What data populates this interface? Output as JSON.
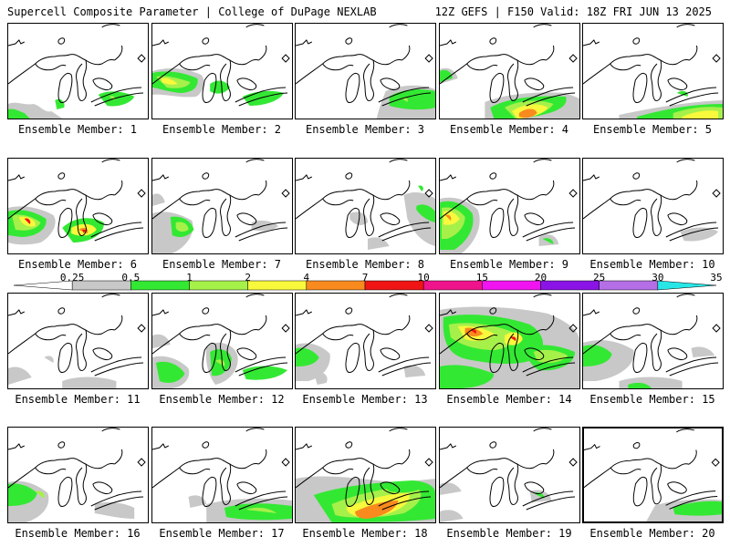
{
  "header": {
    "title": "Supercell Composite Parameter | College of DuPage NEXLAB",
    "run_info": "12Z GEFS | F150 Valid: 18Z FRI JUN 13 2025"
  },
  "colorbar": {
    "thresholds": [
      "0.25",
      "0.5",
      "1",
      "2",
      "4",
      "7",
      "10",
      "15",
      "20",
      "25",
      "30",
      "35"
    ],
    "colors": [
      "#ffffff",
      "#c8c8c8",
      "#33e833",
      "#a6f04a",
      "#f8f83c",
      "#f88a1e",
      "#f01414",
      "#f0148c",
      "#f014f0",
      "#8a14e6",
      "#b46ee6",
      "#28e6e6"
    ]
  },
  "colors": {
    "gray": "#c8c8c8",
    "green": "#33e833",
    "lightgreen": "#a6f04a",
    "yellow": "#f8f83c",
    "orange": "#f88a1e",
    "red": "#f01414"
  },
  "members": [
    {
      "label": "Ensemble Member: 1",
      "selected": false
    },
    {
      "label": "Ensemble Member: 2",
      "selected": false
    },
    {
      "label": "Ensemble Member: 3",
      "selected": false
    },
    {
      "label": "Ensemble Member: 4",
      "selected": false
    },
    {
      "label": "Ensemble Member: 5",
      "selected": false
    },
    {
      "label": "Ensemble Member: 6",
      "selected": false
    },
    {
      "label": "Ensemble Member: 7",
      "selected": false
    },
    {
      "label": "Ensemble Member: 8",
      "selected": false
    },
    {
      "label": "Ensemble Member: 9",
      "selected": false
    },
    {
      "label": "Ensemble Member: 10",
      "selected": false
    },
    {
      "label": "Ensemble Member: 11",
      "selected": false
    },
    {
      "label": "Ensemble Member: 12",
      "selected": false
    },
    {
      "label": "Ensemble Member: 13",
      "selected": false
    },
    {
      "label": "Ensemble Member: 14",
      "selected": false
    },
    {
      "label": "Ensemble Member: 15",
      "selected": false
    },
    {
      "label": "Ensemble Member: 16",
      "selected": false
    },
    {
      "label": "Ensemble Member: 17",
      "selected": false
    },
    {
      "label": "Ensemble Member: 18",
      "selected": false
    },
    {
      "label": "Ensemble Member: 19",
      "selected": false
    },
    {
      "label": "Ensemble Member: 20",
      "selected": true
    }
  ]
}
